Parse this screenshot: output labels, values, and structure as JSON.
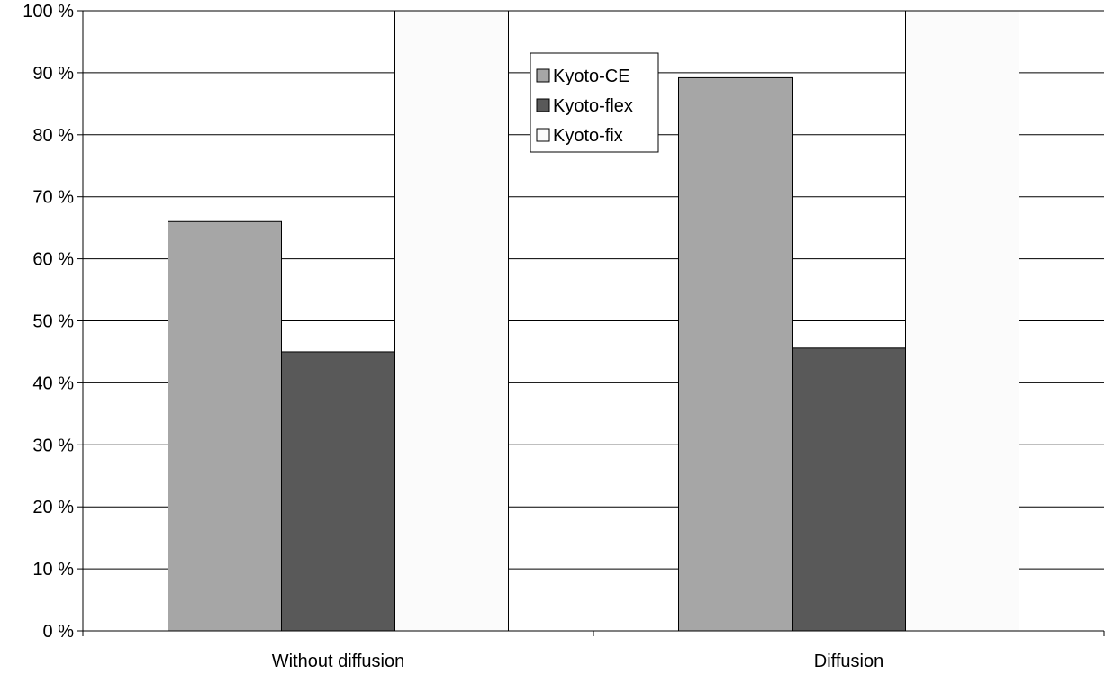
{
  "chart_data": {
    "type": "bar",
    "categories": [
      "Without diffusion",
      "Diffusion"
    ],
    "series": [
      {
        "name": "Kyoto-CE",
        "values": [
          66,
          89.2
        ],
        "color": "#a6a6a6"
      },
      {
        "name": "Kyoto-flex",
        "values": [
          45,
          45.6
        ],
        "color": "#595959"
      },
      {
        "name": "Kyoto-fix",
        "values": [
          100,
          100
        ],
        "color": "#fbfbfb"
      }
    ],
    "ylim": [
      0,
      100
    ],
    "yticks": [
      0,
      10,
      20,
      30,
      40,
      50,
      60,
      70,
      80,
      90,
      100
    ],
    "ytick_labels": [
      "0 %",
      "10 %",
      "20 %",
      "30 %",
      "40 %",
      "50 %",
      "60 %",
      "70 %",
      "80 %",
      "90 %",
      "100 %"
    ],
    "grid": true,
    "legend_position": "top-center",
    "title": "",
    "xlabel": "",
    "ylabel": ""
  }
}
